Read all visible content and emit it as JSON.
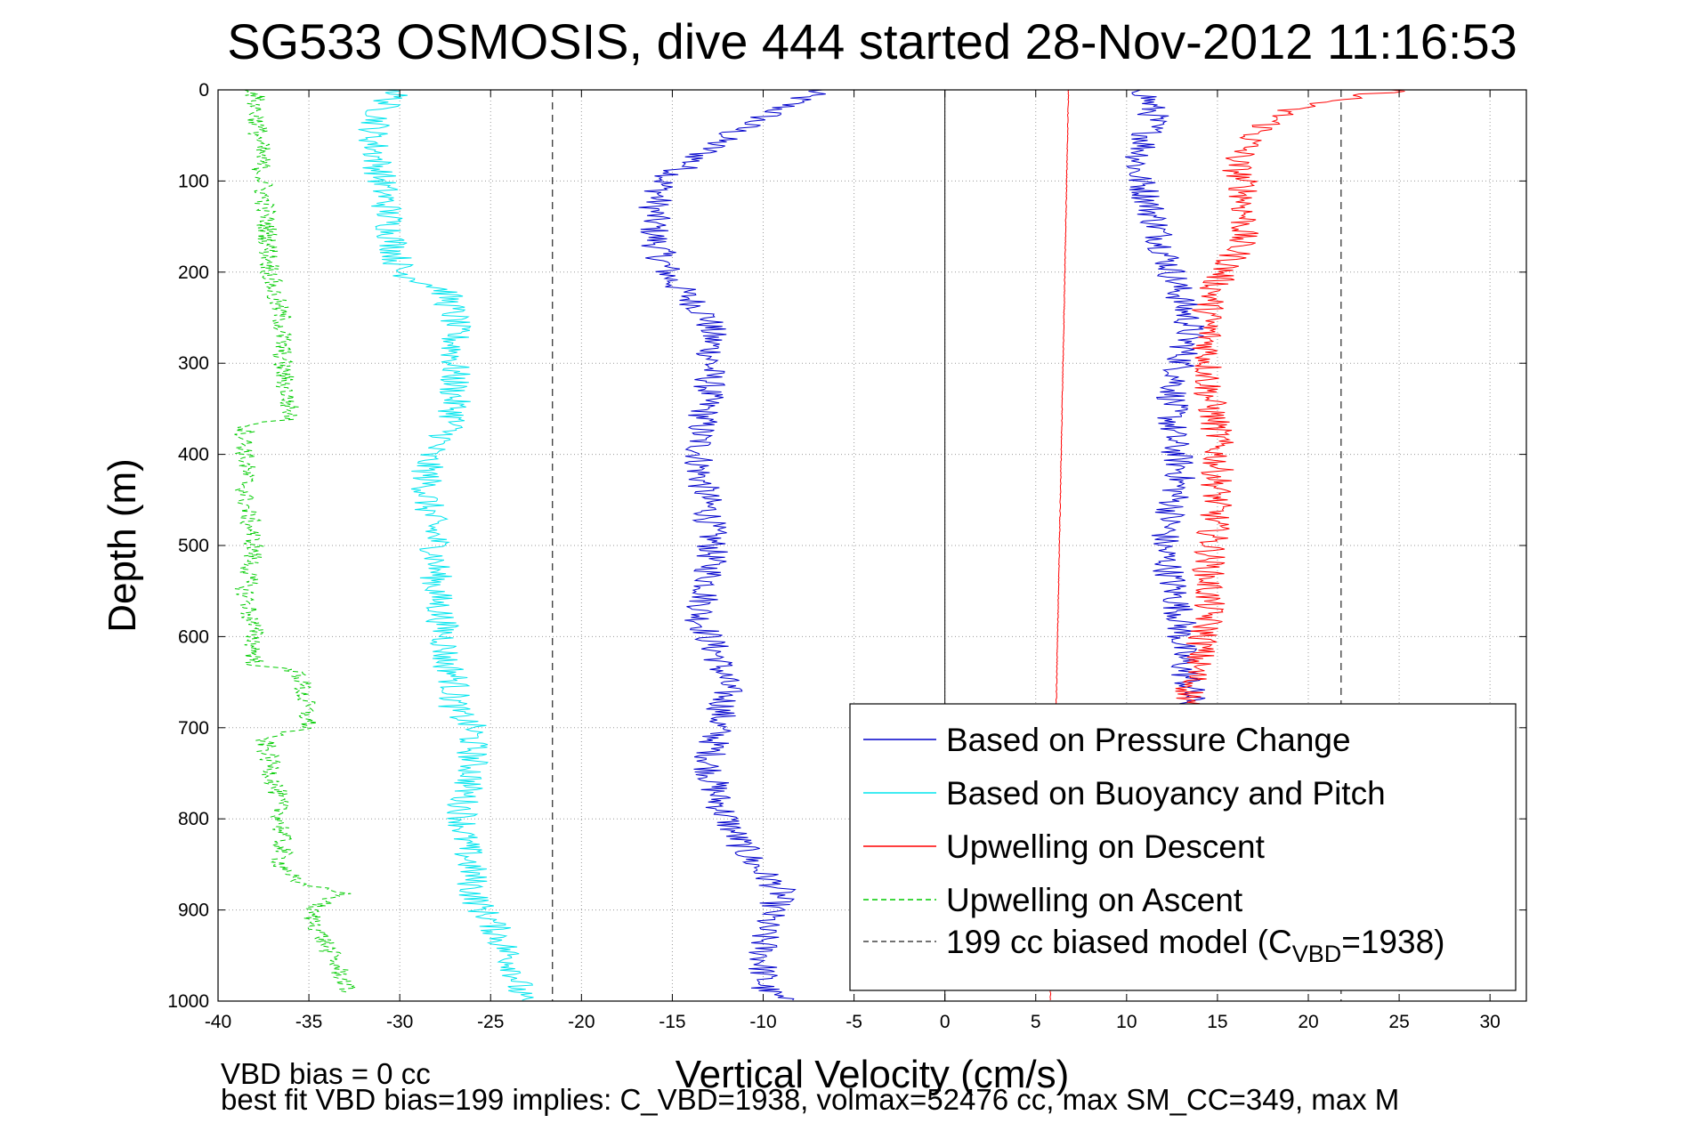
{
  "chart_data": {
    "type": "line",
    "title": "SG533 OSMOSIS, dive 444 started 28-Nov-2012 11:16:53",
    "xlabel": "Vertical Velocity (cm/s)",
    "ylabel": "Depth (m)",
    "xlim": [
      -40,
      32
    ],
    "ylim": [
      0,
      1000
    ],
    "y_reversed": true,
    "grid": "dotted",
    "legend_position": "bottom-right",
    "xticks": [
      "-40",
      "-35",
      "-30",
      "-25",
      "-20",
      "-15",
      "-10",
      "-5",
      "0",
      "5",
      "10",
      "15",
      "20",
      "25",
      "30"
    ],
    "yticks": [
      "0",
      "100",
      "200",
      "300",
      "400",
      "500",
      "600",
      "700",
      "800",
      "900",
      "1000"
    ],
    "series": [
      {
        "name": "Based on Pressure Change",
        "color": "#0000cc",
        "style": "solid",
        "branches": [
          {
            "x": [
              -7,
              -9,
              -12,
              -14,
              -15.5,
              -16,
              -16,
              -15.5,
              -15,
              -14,
              -13,
              -12.8,
              -13,
              -13.5,
              -13.5,
              -13,
              -12.8,
              -13,
              -13.5,
              -12.5,
              -12,
              -12.5,
              -13,
              -12.5,
              -11.5,
              -10.5,
              -9,
              -10,
              -10,
              -10,
              -9
            ],
            "y": [
              0,
              20,
              50,
              80,
              100,
              130,
              160,
              190,
              210,
              230,
              250,
              280,
              330,
              380,
              420,
              460,
              500,
              540,
              580,
              620,
              660,
              700,
              740,
              780,
              820,
              850,
              880,
              920,
              960,
              985,
              1000
            ]
          },
          {
            "x": [
              11,
              11.5,
              11,
              10.5,
              11,
              11.5,
              12,
              12.5,
              13,
              13.5,
              13,
              12.5,
              12.5,
              13,
              12.5,
              12,
              12.5,
              13,
              13,
              13.5,
              13.5
            ],
            "y": [
              0,
              30,
              60,
              90,
              110,
              140,
              170,
              200,
              230,
              260,
              300,
              340,
              380,
              420,
              460,
              500,
              540,
              580,
              620,
              660,
              700
            ]
          }
        ]
      },
      {
        "name": "Based on Buoyancy and Pitch",
        "color": "#00e5ee",
        "style": "solid",
        "branches": [
          {
            "x": [
              -30,
              -31,
              -31.5,
              -31,
              -30.5,
              -30,
              -27.5,
              -27,
              -27,
              -27,
              -27,
              -27.5,
              -28.5,
              -28.5,
              -28,
              -28,
              -27.5,
              -27.5,
              -27,
              -27,
              -26,
              -26,
              -26,
              -26.5,
              -26.5,
              -26,
              -26,
              -25.5,
              -25,
              -24.5,
              -24,
              -23.5,
              -23.5,
              -23.5,
              -23.5
            ],
            "y": [
              0,
              20,
              50,
              100,
              150,
              200,
              220,
              250,
              300,
              350,
              360,
              380,
              400,
              450,
              500,
              550,
              600,
              630,
              640,
              680,
              700,
              710,
              750,
              780,
              820,
              860,
              880,
              900,
              910,
              930,
              950,
              970,
              980,
              990,
              1000
            ]
          }
        ]
      },
      {
        "name": "Upwelling on Descent",
        "color": "#ff0000",
        "style": "solid",
        "branches": [
          {
            "x": [
              25,
              19,
              17,
              16,
              16.5,
              16.5,
              16,
              15,
              14.5,
              14.5,
              14.5,
              15,
              15,
              14.8,
              14.5,
              14.5,
              14,
              13.5,
              13.5
            ],
            "y": [
              0,
              20,
              50,
              80,
              110,
              150,
              180,
              210,
              240,
              280,
              330,
              380,
              430,
              480,
              530,
              580,
              620,
              660,
              700
            ]
          },
          {
            "x": [
              6.8,
              6.7,
              6.6,
              6.5,
              6.4,
              6.3,
              6.2,
              6.1,
              6.0,
              5.9,
              5.8
            ],
            "y": [
              0,
              100,
              200,
              300,
              400,
              500,
              600,
              700,
              800,
              900,
              1000
            ]
          }
        ]
      },
      {
        "name": "Upwelling on Ascent",
        "color": "#00cc00",
        "style": "dashed",
        "branches": [
          {
            "x": [
              -38,
              -37,
              -36.5,
              -36.5,
              -36,
              -38.5,
              -38.5,
              -38.5,
              -38,
              -38.5,
              -38,
              -38,
              -35.5,
              -35,
              -37.5,
              -37,
              -36.5,
              -36.5,
              -36,
              -36,
              -33,
              -35,
              -34.5,
              -34,
              -33.5,
              -33,
              -33
            ],
            "y": [
              0,
              220,
              250,
              300,
              360,
              370,
              400,
              450,
              500,
              550,
              600,
              630,
              640,
              700,
              710,
              750,
              800,
              850,
              860,
              870,
              880,
              900,
              920,
              940,
              960,
              980,
              990
            ]
          }
        ]
      },
      {
        "name": "199 cc biased model (C_VBD=1938)",
        "color": "#444444",
        "style": "dashed",
        "branches": [
          {
            "x": [
              -21.6,
              -21.6
            ],
            "y": [
              0,
              1000
            ]
          },
          {
            "x": [
              21.8,
              21.8
            ],
            "y": [
              0,
              1000
            ]
          }
        ]
      }
    ],
    "legend_entries": [
      {
        "label": "Based on Pressure Change",
        "color": "#0000cc",
        "style": "solid"
      },
      {
        "label": "Based on Buoyancy and Pitch",
        "color": "#00e5ee",
        "style": "solid"
      },
      {
        "label": "Upwelling on Descent",
        "color": "#ff0000",
        "style": "solid"
      },
      {
        "label": "Upwelling on Ascent",
        "color": "#00cc00",
        "style": "dashed"
      },
      {
        "label_main": "199 cc biased model (C",
        "label_sub": "VBD",
        "label_tail": "=1938)",
        "color": "#444444",
        "style": "dashed"
      }
    ],
    "annotations": [
      "VBD bias = 0 cc",
      "best fit VBD bias=199 implies: C_VBD=1938, volmax=52476 cc, max SM_CC=349, max M"
    ]
  }
}
